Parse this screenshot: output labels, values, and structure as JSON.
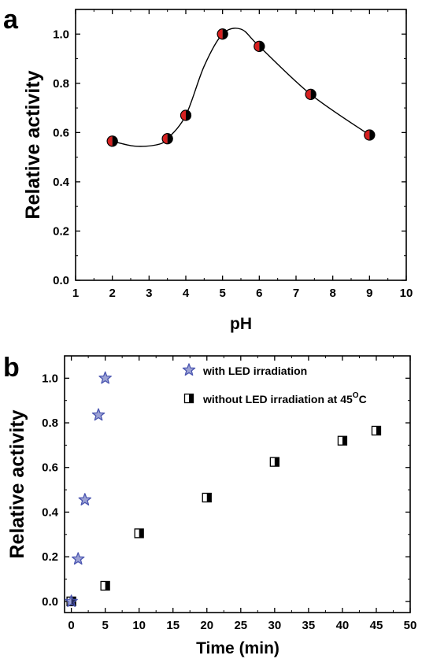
{
  "chart_data": [
    {
      "type": "scatter",
      "panel_label": "a",
      "title": "",
      "xlabel": "pH",
      "ylabel": "Relative activity",
      "xlim": [
        1,
        10
      ],
      "ylim": [
        0.0,
        1.1
      ],
      "x_ticks": [
        1,
        2,
        3,
        4,
        5,
        6,
        7,
        8,
        9,
        10
      ],
      "y_ticks": [
        0.0,
        0.2,
        0.4,
        0.6,
        0.8,
        1.0
      ],
      "y_tick_labels": [
        "0.0",
        "0.2",
        "0.4",
        "0.6",
        "0.8",
        "1.0"
      ],
      "smooth_curve": true,
      "grid": false,
      "series": [
        {
          "marker": "half-filled-circle",
          "colors": [
            "#d62020",
            "#000000"
          ],
          "points": [
            {
              "x": 2.0,
              "y": 0.565
            },
            {
              "x": 3.5,
              "y": 0.575
            },
            {
              "x": 4.0,
              "y": 0.67
            },
            {
              "x": 5.0,
              "y": 1.0
            },
            {
              "x": 6.0,
              "y": 0.95
            },
            {
              "x": 7.4,
              "y": 0.755
            },
            {
              "x": 9.0,
              "y": 0.59
            }
          ]
        }
      ],
      "curve": [
        {
          "x": 2.0,
          "y": 0.565
        },
        {
          "x": 2.6,
          "y": 0.545
        },
        {
          "x": 3.2,
          "y": 0.55
        },
        {
          "x": 3.5,
          "y": 0.575
        },
        {
          "x": 4.0,
          "y": 0.67
        },
        {
          "x": 4.5,
          "y": 0.87
        },
        {
          "x": 5.0,
          "y": 1.0
        },
        {
          "x": 5.5,
          "y": 1.02
        },
        {
          "x": 6.0,
          "y": 0.95
        },
        {
          "x": 7.4,
          "y": 0.755
        },
        {
          "x": 9.0,
          "y": 0.59
        }
      ]
    },
    {
      "type": "scatter",
      "panel_label": "b",
      "title": "",
      "xlabel": "Time (min)",
      "ylabel": "Relative activity",
      "xlim": [
        -1,
        50
      ],
      "ylim": [
        -0.05,
        1.1
      ],
      "x_ticks": [
        0,
        5,
        10,
        15,
        20,
        25,
        30,
        35,
        40,
        45,
        50
      ],
      "y_ticks": [
        0.0,
        0.2,
        0.4,
        0.6,
        0.8,
        1.0
      ],
      "y_tick_labels": [
        "0.0",
        "0.2",
        "0.4",
        "0.6",
        "0.8",
        "1.0"
      ],
      "grid": false,
      "legend_position": "top-right",
      "series": [
        {
          "name": "with LED irradiation",
          "marker": "star",
          "color": "#4a55b0",
          "points": [
            {
              "x": 0,
              "y": 0.0
            },
            {
              "x": 1,
              "y": 0.19
            },
            {
              "x": 2,
              "y": 0.455
            },
            {
              "x": 4,
              "y": 0.835
            },
            {
              "x": 5,
              "y": 1.0
            }
          ]
        },
        {
          "name": "without LED irradiation at 45",
          "name_superscript": "O",
          "name_suffix": "C",
          "marker": "half-filled-square",
          "color": "#000000",
          "errorbar_color": "#e0209a",
          "points": [
            {
              "x": 0,
              "y": 0.0
            },
            {
              "x": 5,
              "y": 0.07
            },
            {
              "x": 10,
              "y": 0.305
            },
            {
              "x": 20,
              "y": 0.465
            },
            {
              "x": 30,
              "y": 0.625
            },
            {
              "x": 40,
              "y": 0.72
            },
            {
              "x": 45,
              "y": 0.765
            }
          ]
        }
      ]
    }
  ]
}
